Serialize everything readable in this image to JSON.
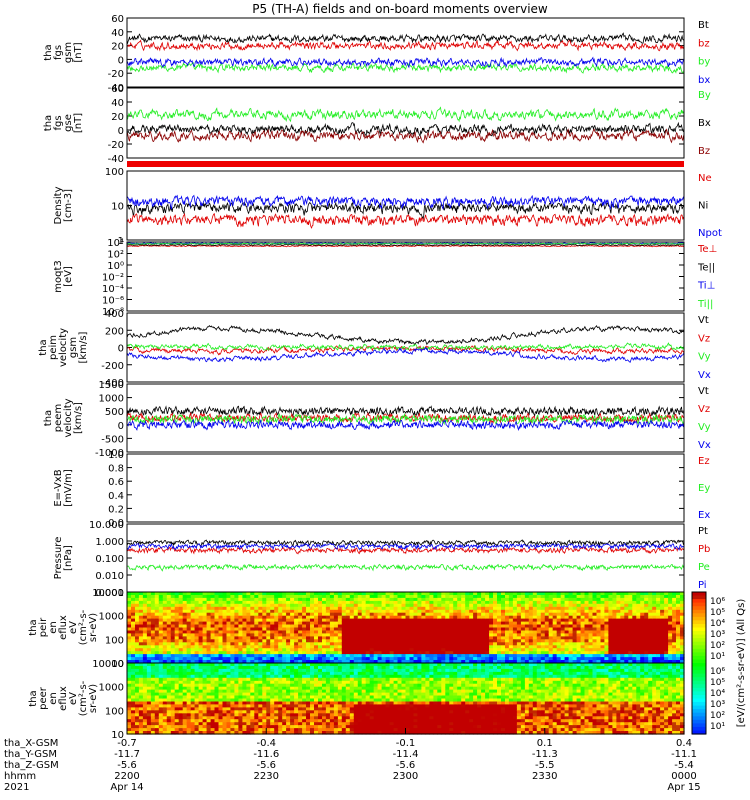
{
  "title": "P5 (TH-A) fields and on-board moments overview",
  "colors": {
    "black": "#000000",
    "red": "#e00000",
    "green": "#22ee22",
    "blue": "#0000ee",
    "darkred": "#8b0000"
  },
  "chart_data": [
    {
      "type": "line",
      "name": "fgs_gsm",
      "ylabel": [
        "tha",
        "fgs",
        "gsm",
        "[nT]"
      ],
      "ylim": [
        -40,
        60
      ],
      "ticks": [
        "60",
        "40",
        "20",
        "0",
        "-20",
        "-40"
      ],
      "series": [
        {
          "name": "Bt",
          "color": "#000000"
        },
        {
          "name": "bz",
          "color": "#e00000"
        },
        {
          "name": "by",
          "color": "#22ee22"
        },
        {
          "name": "bx",
          "color": "#0000ee"
        }
      ]
    },
    {
      "type": "line",
      "name": "fgs_gse",
      "ylabel": [
        "tha",
        "fgs",
        "gse",
        "[nT]"
      ],
      "ylim": [
        -50,
        60
      ],
      "ticks": [
        "60",
        "40",
        "20",
        "0",
        "-20",
        "-40"
      ],
      "series": [
        {
          "name": "By",
          "color": "#22ee22"
        },
        {
          "name": "Bx",
          "color": "#000000"
        },
        {
          "name": "Bz",
          "color": "#8b0000"
        }
      ]
    },
    {
      "type": "line",
      "name": "density",
      "log": true,
      "ylabel": [
        "Density",
        "[cm-3]"
      ],
      "ylim": [
        1,
        200
      ],
      "ticks": [
        "100",
        "10",
        "1"
      ],
      "series": [
        {
          "name": "Ne",
          "color": "#e00000"
        },
        {
          "name": "Ni",
          "color": "#000000"
        },
        {
          "name": "Npot",
          "color": "#0000ee"
        }
      ]
    },
    {
      "type": "line",
      "name": "temperature",
      "log": true,
      "ylabel": [
        "moqt3",
        "[eV]"
      ],
      "ticks": [
        "10⁴",
        "10²",
        "10⁰",
        "10⁻²",
        "10⁻⁴",
        "10⁻⁶",
        "10⁻⁸"
      ],
      "series": [
        {
          "name": "Te⊥",
          "color": "#e00000"
        },
        {
          "name": "Te||",
          "color": "#000000"
        },
        {
          "name": "Ti⊥",
          "color": "#0000ee"
        },
        {
          "name": "Ti||",
          "color": "#22ee22"
        }
      ]
    },
    {
      "type": "line",
      "name": "peim_velocity",
      "ylabel": [
        "tha",
        "peim",
        "velocity",
        "gsm",
        "[km/s]"
      ],
      "ylim": [
        -400,
        400
      ],
      "ticks": [
        "400",
        "200",
        "0",
        "-200",
        "-400"
      ],
      "series": [
        {
          "name": "Vt",
          "color": "#000000"
        },
        {
          "name": "Vz",
          "color": "#e00000"
        },
        {
          "name": "Vy",
          "color": "#22ee22"
        },
        {
          "name": "Vx",
          "color": "#0000ee"
        }
      ]
    },
    {
      "type": "line",
      "name": "peem_velocity",
      "ylabel": [
        "tha",
        "peem",
        "velocity",
        "[km/s]"
      ],
      "ylim": [
        -1500,
        1500
      ],
      "ticks": [
        "1500",
        "1000",
        "500",
        "0",
        "-500",
        "-1000"
      ],
      "series": [
        {
          "name": "Vt",
          "color": "#000000"
        },
        {
          "name": "Vz",
          "color": "#e00000"
        },
        {
          "name": "Vy",
          "color": "#22ee22"
        },
        {
          "name": "Vx",
          "color": "#0000ee"
        }
      ]
    },
    {
      "type": "line",
      "name": "efield",
      "ylabel": [
        "E=-VxB",
        "[mV/m]"
      ],
      "ylim": [
        0,
        1
      ],
      "ticks": [
        "1.0",
        "0.8",
        "0.6",
        "0.4",
        "0.2",
        "0.0"
      ],
      "series": [
        {
          "name": "Ez",
          "color": "#e00000"
        },
        {
          "name": "Ey",
          "color": "#22ee22"
        },
        {
          "name": "Ex",
          "color": "#0000ee"
        }
      ]
    },
    {
      "type": "line",
      "name": "pressure",
      "log": true,
      "ylabel": [
        "Pressure",
        "[nPa]"
      ],
      "ylim": [
        0.001,
        10
      ],
      "ticks": [
        "10.000",
        "1.000",
        "0.100",
        "0.010",
        "0.001"
      ],
      "series": [
        {
          "name": "Pt",
          "color": "#000000"
        },
        {
          "name": "Pb",
          "color": "#e00000"
        },
        {
          "name": "Pe",
          "color": "#22ee22"
        },
        {
          "name": "Pi",
          "color": "#0000ee"
        }
      ]
    },
    {
      "type": "heatmap",
      "name": "peir_eflux",
      "ylabel": [
        "tha",
        "peir",
        "en",
        "eflux",
        "eV",
        "(cm²-s-",
        "sr-eV)"
      ],
      "ticks": [
        "10000",
        "1000",
        "100",
        "10"
      ]
    },
    {
      "type": "heatmap",
      "name": "peer_eflux",
      "ylabel": [
        "tha",
        "peer",
        "en",
        "eflux",
        "eV",
        "(cm²-s-",
        "sr-eV)"
      ],
      "ticks": [
        "10000",
        "1000",
        "100",
        "10"
      ]
    }
  ],
  "colorbar": {
    "label": "[eV/(cm²-s-sr-eV)] (All Qs)",
    "ticks_top": [
      "10⁶",
      "10⁵",
      "10⁴",
      "10³",
      "10²",
      "10¹"
    ],
    "ticks_bottom": [
      "10⁶",
      "10⁵",
      "10⁴",
      "10³",
      "10²",
      "10¹"
    ]
  },
  "xaxis": {
    "rows": [
      {
        "label": "tha_X-GSM",
        "values": [
          "-0.7",
          "-0.4",
          "-0.1",
          "0.1",
          "0.4"
        ]
      },
      {
        "label": "tha_Y-GSM",
        "values": [
          "-11.7",
          "-11.6",
          "-11.4",
          "-11.3",
          "-11.1"
        ]
      },
      {
        "label": "tha_Z-GSM",
        "values": [
          "-5.6",
          "-5.6",
          "-5.6",
          "-5.5",
          "-5.4"
        ]
      },
      {
        "label": "hhmm",
        "values": [
          "2200",
          "2230",
          "2300",
          "2330",
          "0000"
        ]
      },
      {
        "label": "2021",
        "values": [
          "Apr 14",
          "",
          "",
          "",
          "Apr 15"
        ]
      }
    ]
  }
}
